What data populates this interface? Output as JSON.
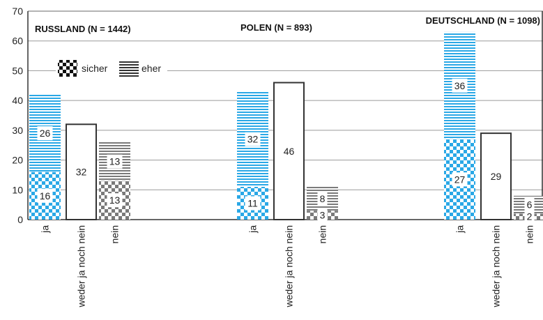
{
  "chart_data": {
    "type": "bar",
    "ylim": [
      0,
      70
    ],
    "yticks": [
      0,
      10,
      20,
      30,
      40,
      50,
      60,
      70
    ],
    "grid": true,
    "legend": {
      "position": "top-left",
      "items": [
        {
          "label": "sicher",
          "pattern": "checker"
        },
        {
          "label": "eher",
          "pattern": "stripes"
        }
      ]
    },
    "colors": {
      "blue": "#2aa8e6",
      "gray": "#7a7a7a",
      "grid": "#9a9a9a",
      "frame": "#333333"
    },
    "groups": [
      {
        "title": "RUSSLAND (N = 1442)",
        "bars": [
          {
            "category": "ja",
            "segments": [
              {
                "kind": "sicher",
                "value": 16,
                "label": "16"
              },
              {
                "kind": "eher",
                "value": 26,
                "label": "26"
              }
            ]
          },
          {
            "category": "weder ja noch nein",
            "segments": [
              {
                "kind": "neutral",
                "value": 32,
                "label": "32"
              }
            ]
          },
          {
            "category": "nein",
            "segments": [
              {
                "kind": "sicher",
                "value": 13,
                "label": "13"
              },
              {
                "kind": "eher",
                "value": 13,
                "label": "13"
              }
            ]
          }
        ]
      },
      {
        "title": "POLEN (N = 893)",
        "bars": [
          {
            "category": "ja",
            "segments": [
              {
                "kind": "sicher",
                "value": 11,
                "label": "11"
              },
              {
                "kind": "eher",
                "value": 32,
                "label": "32"
              }
            ]
          },
          {
            "category": "weder ja noch nein",
            "segments": [
              {
                "kind": "neutral",
                "value": 46,
                "label": "46"
              }
            ]
          },
          {
            "category": "nein",
            "segments": [
              {
                "kind": "sicher",
                "value": 3,
                "label": "3"
              },
              {
                "kind": "eher",
                "value": 8,
                "label": "8"
              }
            ]
          }
        ]
      },
      {
        "title": "DEUTSCHLAND (N = 1098)",
        "bars": [
          {
            "category": "ja",
            "segments": [
              {
                "kind": "sicher",
                "value": 27,
                "label": "27"
              },
              {
                "kind": "eher",
                "value": 36,
                "label": "36"
              }
            ]
          },
          {
            "category": "weder ja noch nein",
            "segments": [
              {
                "kind": "neutral",
                "value": 29,
                "label": "29"
              }
            ]
          },
          {
            "category": "nein",
            "segments": [
              {
                "kind": "sicher",
                "value": 2,
                "label": "2"
              },
              {
                "kind": "eher",
                "value": 6,
                "label": "6"
              }
            ]
          }
        ]
      }
    ]
  }
}
